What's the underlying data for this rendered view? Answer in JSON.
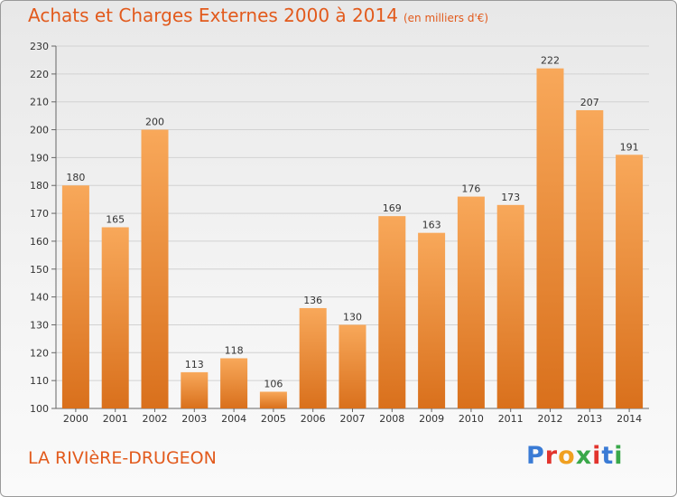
{
  "title": "Achats et Charges Externes 2000 à 2014",
  "unit_label": "(en milliers d'€)",
  "commune": "LA RIVIèRE-DRUGEON",
  "logo": "Proxiti",
  "logo_colors": [
    "#3a7bd5",
    "#e2342d",
    "#f0a020",
    "#3aa84a",
    "#e2342d",
    "#3a7bd5",
    "#3aa84a"
  ],
  "colors": {
    "title": "#e25a1c",
    "bar_top": "#f8a85a",
    "bar_bottom": "#d9701c"
  },
  "chart_data": {
    "type": "bar",
    "categories": [
      "2000",
      "2001",
      "2002",
      "2003",
      "2004",
      "2005",
      "2006",
      "2007",
      "2008",
      "2009",
      "2010",
      "2011",
      "2012",
      "2013",
      "2014"
    ],
    "values": [
      180,
      165,
      200,
      113,
      118,
      106,
      136,
      130,
      169,
      163,
      176,
      173,
      222,
      207,
      191
    ],
    "ylim": [
      100,
      230
    ],
    "yticks": [
      100,
      110,
      120,
      130,
      140,
      150,
      160,
      170,
      180,
      190,
      200,
      210,
      220,
      230
    ],
    "grid": true,
    "legend": "none"
  }
}
